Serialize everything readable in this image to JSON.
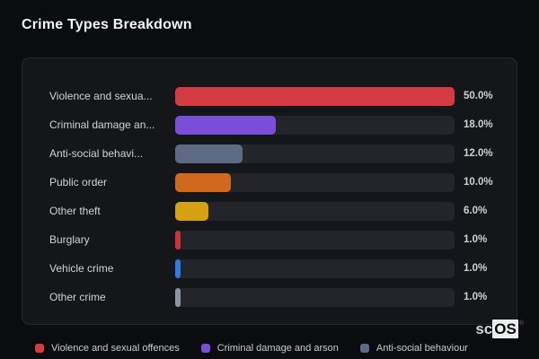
{
  "page": {
    "title": "Crime Types Breakdown"
  },
  "chart_data": {
    "type": "bar",
    "orientation": "horizontal",
    "title": "Crime Types Breakdown",
    "categories": [
      "Violence and sexua...",
      "Criminal damage an...",
      "Anti-social behavi...",
      "Public order",
      "Other theft",
      "Burglary",
      "Vehicle crime",
      "Other crime"
    ],
    "values": [
      50.0,
      18.0,
      12.0,
      10.0,
      6.0,
      1.0,
      1.0,
      1.0
    ],
    "value_labels": [
      "50.0%",
      "18.0%",
      "12.0%",
      "10.0%",
      "6.0%",
      "1.0%",
      "1.0%",
      "1.0%"
    ],
    "bar_colors": [
      "#d43b41",
      "#7b4dd8",
      "#5c6b83",
      "#d0691c",
      "#d5a112",
      "#cd333e",
      "#2a7de1",
      "#8f95a0"
    ],
    "bar_scale_max": 50.0,
    "track_color": "#24252a",
    "grid": false,
    "legend_position": "bottom",
    "legend": [
      {
        "label": "Violence and sexual offences",
        "color": "#d43b41"
      },
      {
        "label": "Criminal damage and arson",
        "color": "#7b4dd8"
      },
      {
        "label": "Anti-social behaviour",
        "color": "#5c6b83"
      }
    ]
  },
  "branding": {
    "prefix": "sc",
    "suffix": "OS",
    "registered": "®"
  },
  "colors": {
    "page_background": "#0b0c0f",
    "card_background": "#151619",
    "card_border": "#26272d",
    "title_text": "#f2f4f6",
    "label_text": "#ced2d6",
    "value_text": "#cdd1d5",
    "legend_text": "#c7cbd0"
  }
}
